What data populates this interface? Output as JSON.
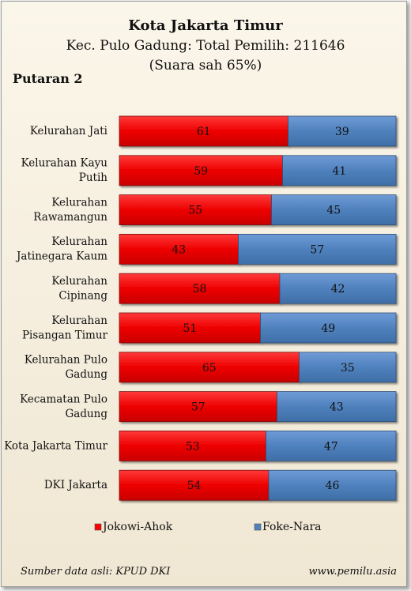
{
  "chart_data": {
    "type": "bar",
    "stacked": true,
    "orientation": "horizontal",
    "normalized_percent": true,
    "title": "Kota Jakarta Timur",
    "subtitle": "Kec. Pulo Gadung: Total Pemilih: 211646",
    "subtitle2": "(Suara sah 65%)",
    "round_label": "Putaran 2",
    "categories": [
      "Kelurahan Jati",
      "Kelurahan Kayu Putih",
      "Kelurahan Rawamangun",
      "Kelurahan Jatinegara Kaum",
      "Kelurahan Cipinang",
      "Kelurahan Pisangan Timur",
      "Kelurahan Pulo Gadung",
      "Kecamatan Pulo Gadung",
      "Kota Jakarta Timur",
      "DKI Jakarta"
    ],
    "category_lines": [
      [
        "Kelurahan Jati"
      ],
      [
        "Kelurahan Kayu",
        "Putih"
      ],
      [
        "Kelurahan",
        "Rawamangun"
      ],
      [
        "Kelurahan",
        "Jatinegara Kaum"
      ],
      [
        "Kelurahan",
        "Cipinang"
      ],
      [
        "Kelurahan",
        "Pisangan Timur"
      ],
      [
        "Kelurahan Pulo",
        "Gadung"
      ],
      [
        "Kecamatan Pulo",
        "Gadung"
      ],
      [
        "Kota Jakarta Timur"
      ],
      [
        "DKI Jakarta"
      ]
    ],
    "series": [
      {
        "name": "Jokowi-Ahok",
        "color": "#ff0000",
        "values": [
          61,
          59,
          55,
          43,
          58,
          51,
          65,
          57,
          53,
          54
        ]
      },
      {
        "name": "Foke-Nara",
        "color": "#4f81bd",
        "values": [
          39,
          41,
          45,
          57,
          42,
          49,
          35,
          43,
          47,
          46
        ]
      }
    ],
    "xlim": [
      0,
      100
    ],
    "grid": false,
    "legend_position": "bottom"
  },
  "footer": {
    "source": "Sumber data asli: KPUD DKI",
    "website": "www.pemilu.asia"
  }
}
